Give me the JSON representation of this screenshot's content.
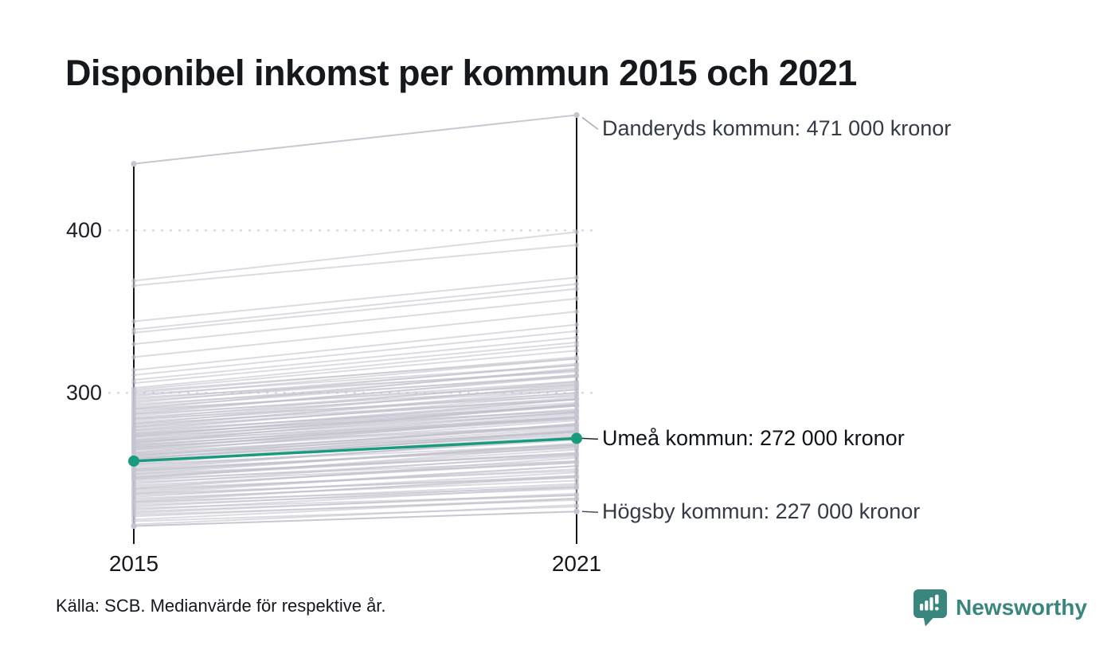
{
  "header": {
    "title": "Disponibel inkomst per kommun 2015 och 2021"
  },
  "chart_data": {
    "type": "line",
    "subtype": "slope-chart",
    "x_categories": [
      "2015",
      "2021"
    ],
    "y_ticks": [
      {
        "label": "400",
        "value": 400
      },
      {
        "label": "300",
        "value": 300
      }
    ],
    "ylim": [
      207,
      471
    ],
    "grid": "dotted-horizontal",
    "legend": "none",
    "series": [
      {
        "name": "Danderyds kommun",
        "values": [
          441,
          471
        ],
        "label": "Danderyds kommun: 471 000 kronor",
        "highlight": false,
        "label_dy": 18
      },
      {
        "name": "Umeå kommun",
        "values": [
          258,
          272
        ],
        "label": "Umeå kommun: 272 000 kronor",
        "highlight": true,
        "label_dy": 1
      },
      {
        "name": "Högsby kommun",
        "values": [
          218,
          227
        ],
        "label": "Högsby kommun: 227 000 kronor",
        "highlight": false,
        "label_dy": 1
      }
    ],
    "background_series": [
      [
        369,
        399
      ],
      [
        366,
        391
      ],
      [
        344,
        371
      ],
      [
        339,
        367
      ],
      [
        337,
        364
      ],
      [
        330,
        358
      ],
      [
        322,
        350
      ],
      [
        314,
        342
      ],
      [
        311,
        338
      ],
      [
        308,
        334
      ],
      [
        306,
        331
      ],
      [
        303,
        329
      ],
      [
        302,
        326
      ],
      [
        301,
        321
      ],
      [
        300,
        322
      ],
      [
        299,
        317
      ],
      [
        298,
        321
      ],
      [
        297,
        313
      ],
      [
        296,
        317
      ],
      [
        295,
        314
      ],
      [
        294,
        318
      ],
      [
        293,
        310
      ],
      [
        292,
        314
      ],
      [
        291,
        311
      ],
      [
        290,
        305
      ],
      [
        290,
        315
      ],
      [
        289,
        307
      ],
      [
        288,
        310
      ],
      [
        287,
        303
      ],
      [
        287,
        311
      ],
      [
        286,
        306
      ],
      [
        285,
        302
      ],
      [
        284,
        307
      ],
      [
        284,
        298
      ],
      [
        283,
        304
      ],
      [
        282,
        300
      ],
      [
        281,
        305
      ],
      [
        281,
        296
      ],
      [
        280,
        300
      ],
      [
        279,
        296
      ],
      [
        279,
        302
      ],
      [
        278,
        297
      ],
      [
        277,
        292
      ],
      [
        277,
        299
      ],
      [
        276,
        294
      ],
      [
        275,
        296
      ],
      [
        275,
        289
      ],
      [
        274,
        293
      ],
      [
        274,
        292
      ],
      [
        273,
        296
      ],
      [
        273,
        289
      ],
      [
        272,
        292
      ],
      [
        271,
        288
      ],
      [
        271,
        293
      ],
      [
        270,
        285
      ],
      [
        270,
        290
      ],
      [
        269,
        288
      ],
      [
        269,
        293
      ],
      [
        268,
        284
      ],
      [
        268,
        285
      ],
      [
        267,
        288
      ],
      [
        267,
        280
      ],
      [
        266,
        284
      ],
      [
        266,
        285
      ],
      [
        265,
        287
      ],
      [
        265,
        280
      ],
      [
        264,
        283
      ],
      [
        263,
        279
      ],
      [
        263,
        286
      ],
      [
        262,
        276
      ],
      [
        262,
        280
      ],
      [
        261,
        281
      ],
      [
        261,
        278
      ],
      [
        260,
        274
      ],
      [
        260,
        276
      ],
      [
        259,
        277
      ],
      [
        259,
        281
      ],
      [
        258,
        273
      ],
      [
        258,
        275
      ],
      [
        257,
        276
      ],
      [
        256,
        268
      ],
      [
        256,
        277
      ],
      [
        255,
        271
      ],
      [
        254,
        272
      ],
      [
        253,
        266
      ],
      [
        253,
        273
      ],
      [
        252,
        267
      ],
      [
        252,
        268
      ],
      [
        251,
        268
      ],
      [
        250,
        262
      ],
      [
        250,
        269
      ],
      [
        249,
        263
      ],
      [
        248,
        265
      ],
      [
        248,
        263
      ],
      [
        247,
        258
      ],
      [
        247,
        267
      ],
      [
        246,
        261
      ],
      [
        245,
        257
      ],
      [
        244,
        262
      ],
      [
        243,
        257
      ],
      [
        242,
        258
      ],
      [
        241,
        252
      ],
      [
        241,
        260
      ],
      [
        240,
        253
      ],
      [
        239,
        255
      ],
      [
        238,
        248
      ],
      [
        238,
        255
      ],
      [
        237,
        249
      ],
      [
        236,
        251
      ],
      [
        235,
        246
      ],
      [
        234,
        248
      ],
      [
        233,
        242
      ],
      [
        233,
        249
      ],
      [
        232,
        244
      ],
      [
        231,
        241
      ],
      [
        230,
        243
      ],
      [
        229,
        237
      ],
      [
        228,
        242
      ],
      [
        227,
        237
      ],
      [
        226,
        238
      ],
      [
        225,
        234
      ],
      [
        224,
        235
      ],
      [
        222,
        235
      ],
      [
        221,
        230
      ],
      [
        219,
        231
      ]
    ]
  },
  "footer": {
    "source": "Källa: SCB. Medianvärde för respektive år.",
    "brand": "Newsworthy"
  },
  "colors": {
    "highlight": "#189a7f",
    "background_line": "#bfbdca",
    "marker": "#c6c4d0",
    "axis": "#17171c",
    "grid": "#d7d7dd",
    "brand": "#38867d",
    "annotation": "#343b46",
    "annotation_highlight": "#101419"
  }
}
